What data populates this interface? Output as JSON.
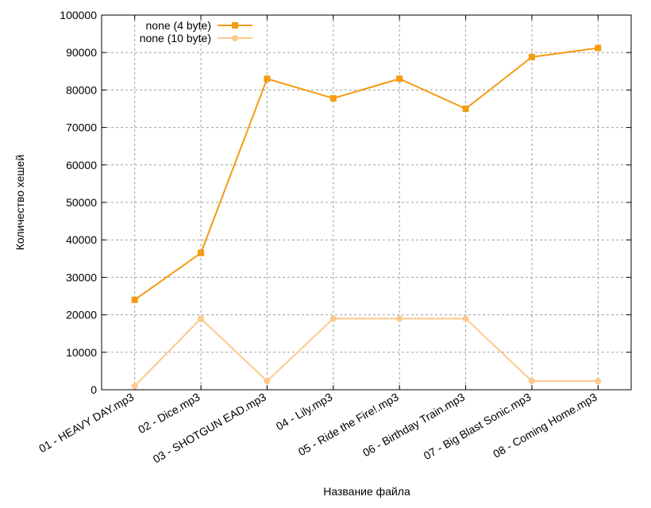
{
  "chart_data": {
    "type": "line",
    "title": "",
    "xlabel": "Название файла",
    "ylabel": "Количество хешей",
    "categories": [
      "01 - HEAVY DAY.mp3",
      "02 - Dice.mp3",
      "03 - SHOTGUN  EAD.mp3",
      "04 - Lily.mp3",
      "05 - Ride the Fire!.mp3",
      "06 - Birthday Train.mp3",
      "07 - Big Blast Sonic.mp3",
      "08 - Coming Home.mp3"
    ],
    "ylim": [
      0,
      100000
    ],
    "yticks": [
      0,
      10000,
      20000,
      30000,
      40000,
      50000,
      60000,
      70000,
      80000,
      90000,
      100000
    ],
    "grid": true,
    "legend_position": "top-left",
    "series": [
      {
        "name": "none (4 byte)",
        "color": "#f39c12",
        "marker": "square",
        "values": [
          24000,
          36500,
          83000,
          77800,
          83000,
          75000,
          88800,
          91200
        ]
      },
      {
        "name": "none (10 byte)",
        "color": "#fcc98a",
        "marker": "circle",
        "values": [
          1000,
          19000,
          2300,
          19000,
          19000,
          19000,
          2300,
          2300
        ]
      }
    ]
  }
}
